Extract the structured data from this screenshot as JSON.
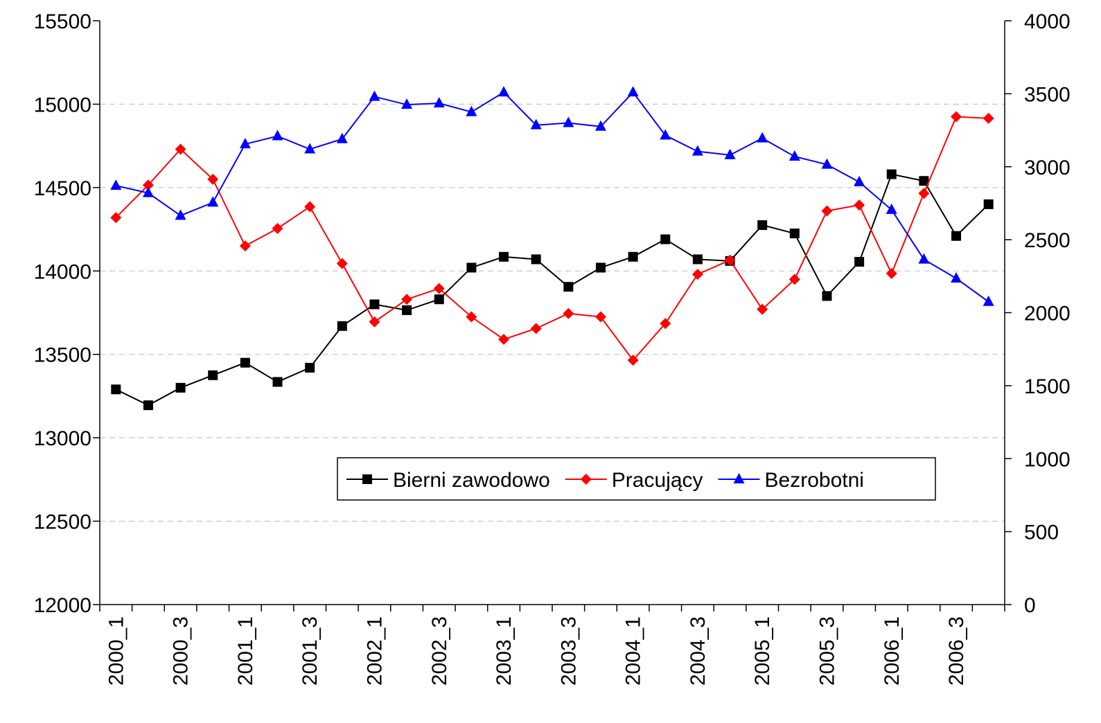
{
  "chart_data": {
    "type": "line",
    "categories": [
      "2000_1",
      null,
      "2000_3",
      null,
      "2001_1",
      null,
      "2001_3",
      null,
      "2002_1",
      null,
      "2002_3",
      null,
      "2003_1",
      null,
      "2003_3",
      null,
      "2004_1",
      null,
      "2004_3",
      null,
      "2005_1",
      null,
      "2005_3",
      null,
      "2006_1",
      null,
      "2006_3",
      null
    ],
    "series": [
      {
        "name": "Bierni zawodowo",
        "color": "#000000",
        "marker": "square",
        "values": [
          13290,
          13195,
          13300,
          13375,
          13450,
          13335,
          13420,
          13670,
          13800,
          13765,
          13830,
          14020,
          14085,
          14070,
          13905,
          14020,
          14085,
          14190,
          14070,
          14060,
          14275,
          14225,
          13850,
          14055,
          14580,
          14540,
          14210,
          14400
        ]
      },
      {
        "name": "Pracujący",
        "color": "#ff0000",
        "marker": "diamond",
        "values": [
          14320,
          14515,
          14730,
          14550,
          14150,
          14255,
          14385,
          14045,
          13695,
          13830,
          13895,
          13725,
          13590,
          13655,
          13745,
          13725,
          13465,
          13685,
          13980,
          14065,
          13770,
          13950,
          14360,
          14395,
          13985,
          14465,
          14925,
          14915
        ]
      },
      {
        "name": "Bezrobotni",
        "color": "#0000ff",
        "marker": "triangle",
        "axis": "y2",
        "values": [
          2870,
          2820,
          2665,
          2755,
          3155,
          3210,
          3120,
          3190,
          3480,
          3425,
          3435,
          3375,
          3510,
          3285,
          3300,
          3275,
          3510,
          3215,
          3105,
          3080,
          3195,
          3070,
          3015,
          2895,
          2705,
          2365,
          2235,
          2075
        ]
      }
    ],
    "ylim": [
      12000,
      15500
    ],
    "yticks": [
      12000,
      12500,
      13000,
      13500,
      14000,
      14500,
      15000,
      15500
    ],
    "y2lim": [
      0,
      4000
    ],
    "y2ticks": [
      0,
      500,
      1000,
      1500,
      2000,
      2500,
      3000,
      3500,
      4000
    ],
    "grid": true
  }
}
